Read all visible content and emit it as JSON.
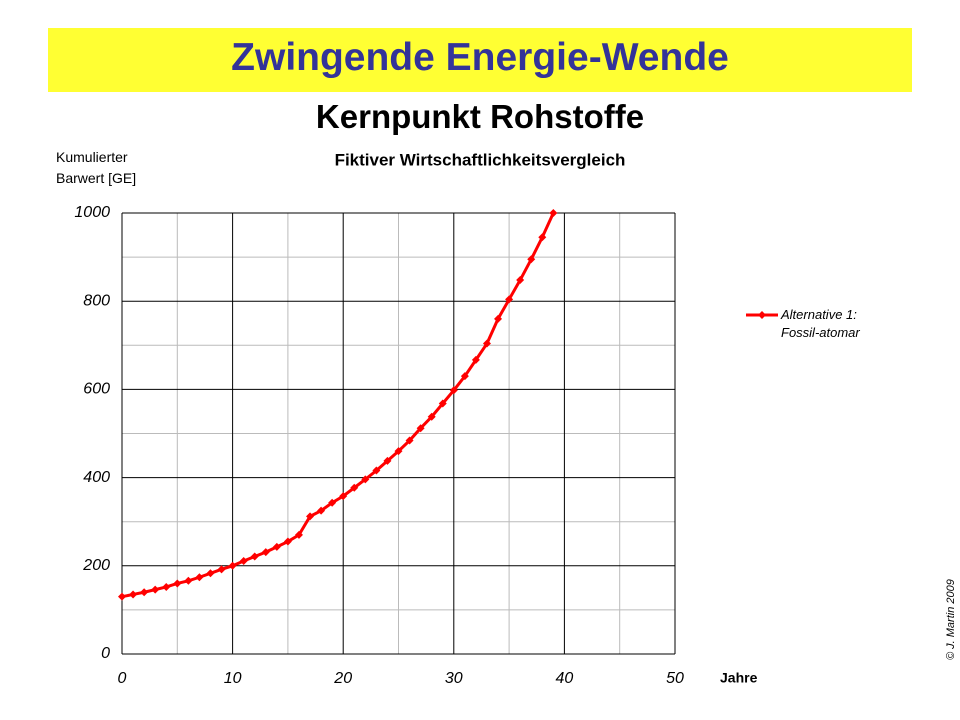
{
  "header": {
    "title": "Zwingende Energie-Wende",
    "subtitle": "Kernpunkt Rohstoffe"
  },
  "chart_data": {
    "type": "line",
    "title": "Fiktiver Wirtschaftlichkeitsvergleich",
    "y_label": "Kumulierter\nBarwert [GE]",
    "x_label": "Jahre",
    "x": [
      0,
      1,
      2,
      3,
      4,
      5,
      6,
      7,
      8,
      9,
      10,
      11,
      12,
      13,
      14,
      15,
      16,
      17,
      18,
      19,
      20,
      21,
      22,
      23,
      24,
      25,
      26,
      27,
      28,
      29,
      30,
      31,
      32,
      33,
      34,
      35,
      36,
      37,
      38,
      39
    ],
    "series": [
      {
        "name": "Alternative 1:\nFossil-atomar",
        "color": "#ff0000",
        "values": [
          130,
          135,
          140,
          146,
          152,
          160,
          166,
          174,
          183,
          192,
          200,
          211,
          221,
          231,
          243,
          255,
          270,
          312,
          325,
          343,
          358,
          377,
          396,
          416,
          438,
          460,
          484,
          512,
          538,
          568,
          598,
          630,
          667,
          704,
          760,
          804,
          848,
          895,
          945,
          1000
        ]
      }
    ],
    "xlim": [
      0,
      50
    ],
    "xticks": [
      0,
      10,
      20,
      30,
      40,
      50
    ],
    "x_minor_ticks": [
      5,
      15,
      25,
      35,
      45
    ],
    "ylim": [
      0,
      1000
    ],
    "yticks": [
      0,
      200,
      400,
      600,
      800,
      1000
    ],
    "y_minor_ticks": [
      100,
      300,
      500,
      700,
      900
    ],
    "grid": true,
    "legend": "right"
  },
  "footer": {
    "copyright": "© J. Martin 2009"
  }
}
